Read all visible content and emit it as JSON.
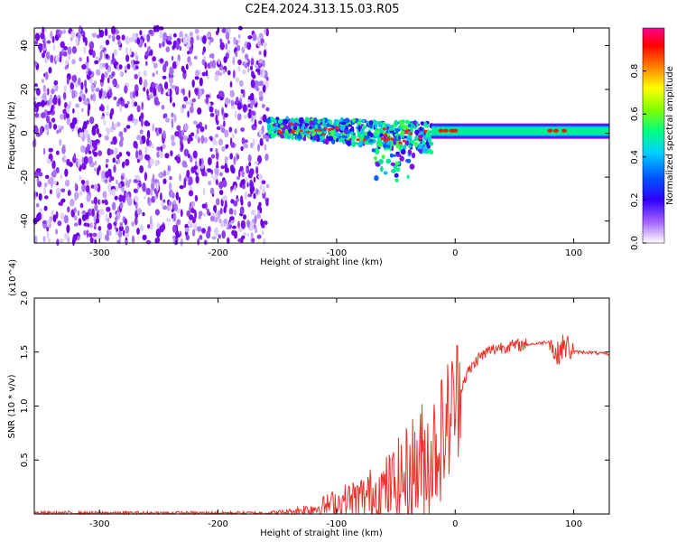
{
  "title": "C2E4.2024.313.15.03.R05",
  "chart_data": [
    {
      "type": "heatmap",
      "xlabel": "Height of straight line (km)",
      "ylabel": "Frequency (Hz)",
      "xlim": [
        -355,
        130
      ],
      "ylim": [
        -50,
        48
      ],
      "x_ticks": [
        -300,
        -200,
        -100,
        0,
        100
      ],
      "y_ticks": [
        -40,
        -20,
        0,
        20,
        40
      ],
      "colorbar": {
        "label": "Normalized spectral amplitude",
        "range": [
          0.0,
          1.0
        ],
        "ticks": [
          "0.0",
          "0.2",
          "0.4",
          "0.6",
          "0.8"
        ],
        "colormap": [
          "#ffffff",
          "#8000ff",
          "#0000ff",
          "#00c0ff",
          "#00ff80",
          "#80ff00",
          "#ffff00",
          "#ff8000",
          "#ff0000",
          "#ff0080"
        ]
      },
      "regions": [
        {
          "x_range": [
            -355,
            -158
          ],
          "freq_range": [
            -50,
            48
          ],
          "amplitude": "low, scattered noise (purple)"
        },
        {
          "x_range": [
            -158,
            -20
          ],
          "freq_center": [
            3,
            -2
          ],
          "freq_halfwidth": [
            4,
            6
          ],
          "amplitude": "mixed blue/green with scattered red"
        },
        {
          "x_range": [
            -20,
            130
          ],
          "freq_center": 1,
          "freq_halfwidth": 3,
          "amplitude": "steady green band with red spots"
        }
      ],
      "grid": false
    },
    {
      "type": "line",
      "xlabel": "Height of straight line (km)",
      "ylabel": "SNR (10 * v/v)",
      "y_multiplier": "(x10^4)",
      "xlim": [
        -355,
        130
      ],
      "ylim": [
        0,
        2.0
      ],
      "x_ticks": [
        -300,
        -200,
        -100,
        0,
        100
      ],
      "y_ticks": [
        "0.5",
        "1.0",
        "1.5",
        "2.0"
      ],
      "color": "#e8322a",
      "series": [
        {
          "x": [
            -355,
            -300,
            -250,
            -200,
            -160,
            -140,
            -120,
            -100,
            -80,
            -60,
            -50,
            -40,
            -30,
            -20,
            -10,
            0,
            10,
            20,
            30,
            40,
            50,
            60,
            70,
            80,
            85,
            90,
            95,
            100,
            110,
            120,
            130
          ],
          "y": [
            0.01,
            0.01,
            0.01,
            0.01,
            0.01,
            0.02,
            0.05,
            0.1,
            0.15,
            0.22,
            0.28,
            0.35,
            0.45,
            0.55,
            0.75,
            1.05,
            1.3,
            1.45,
            1.52,
            1.55,
            1.56,
            1.57,
            1.58,
            1.6,
            1.45,
            1.55,
            1.55,
            1.5,
            1.5,
            1.49,
            1.48
          ]
        }
      ]
    }
  ]
}
